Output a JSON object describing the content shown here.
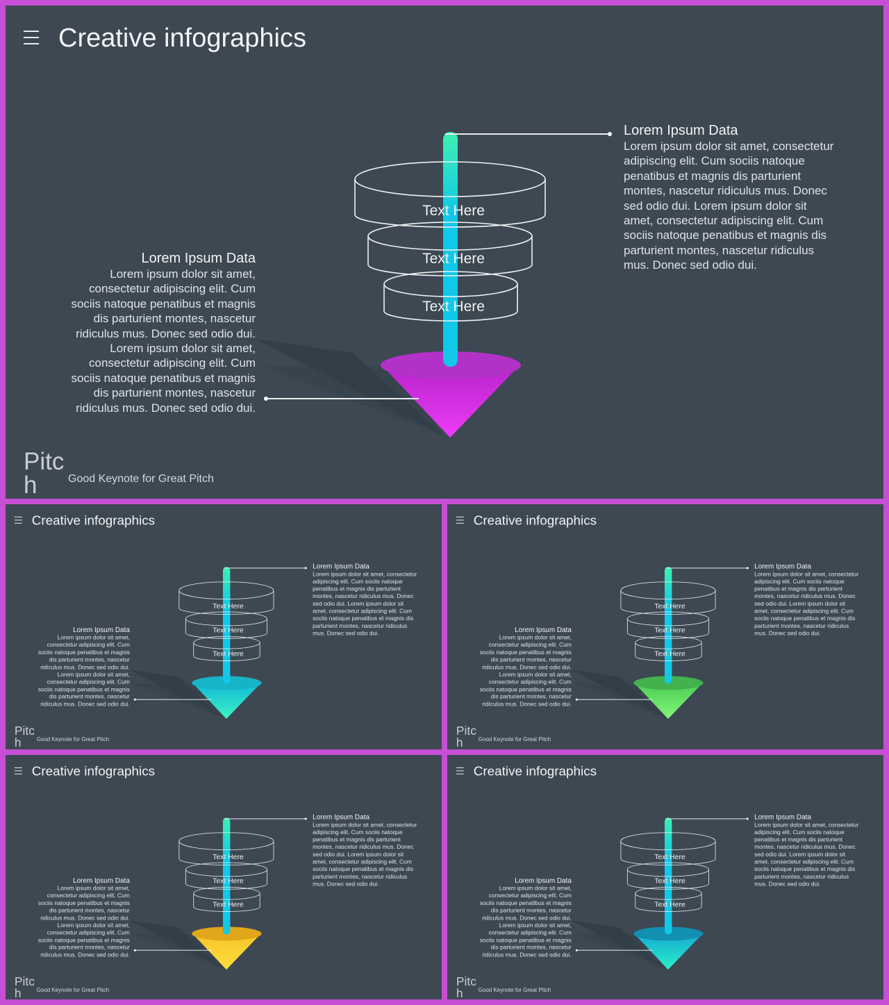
{
  "header": {
    "title": "Creative infographics",
    "menu_icon": "hamburger-menu-icon"
  },
  "funnel": {
    "layers": [
      "Text Here",
      "Text Here",
      "Text Here"
    ]
  },
  "right_label": {
    "title": "Lorem Ipsum Data",
    "body": "Lorem ipsum dolor sit amet, consectetur adipiscing elit. Cum sociis natoque penatibus et magnis dis parturient montes, nascetur ridiculus mus. Donec sed odio dui. Lorem ipsum dolor sit amet, consectetur adipiscing elit. Cum sociis natoque penatibus et magnis dis parturient montes, nascetur ridiculus mus. Donec sed odio dui."
  },
  "left_label": {
    "title": "Lorem Ipsum Data",
    "body": "Lorem ipsum dolor sit amet, consectetur adipiscing elit. Cum sociis natoque penatibus et magnis dis parturient montes, nascetur ridiculus mus. Donec sed odio dui. Lorem ipsum dolor sit amet, consectetur adipiscing elit. Cum sociis natoque penatibus et magnis dis parturient montes, nascetur ridiculus mus. Donec sed odio dui."
  },
  "footer": {
    "brand": "Pitch",
    "tagline": "Good Keynote for Great Pitch"
  },
  "colors": {
    "background": "#3d4852",
    "frame": "#c64fd6",
    "stick_top": "#3ff0b0",
    "stick_bottom": "#11c8e8",
    "variants": [
      {
        "name": "magenta",
        "top": "#b232c8",
        "light": "#ee3cf8",
        "dark": "#b522c8"
      },
      {
        "name": "cyan",
        "top": "#17b3c6",
        "light": "#3df3c3",
        "dark": "#11b8d8"
      },
      {
        "name": "green",
        "top": "#43b14d",
        "light": "#86f47a",
        "dark": "#48cc54"
      },
      {
        "name": "yellow",
        "top": "#e0a71a",
        "light": "#ffe03c",
        "dark": "#f6c22a"
      },
      {
        "name": "teal",
        "top": "#128fb1",
        "light": "#2bf0c8",
        "dark": "#14a9d3"
      }
    ]
  }
}
